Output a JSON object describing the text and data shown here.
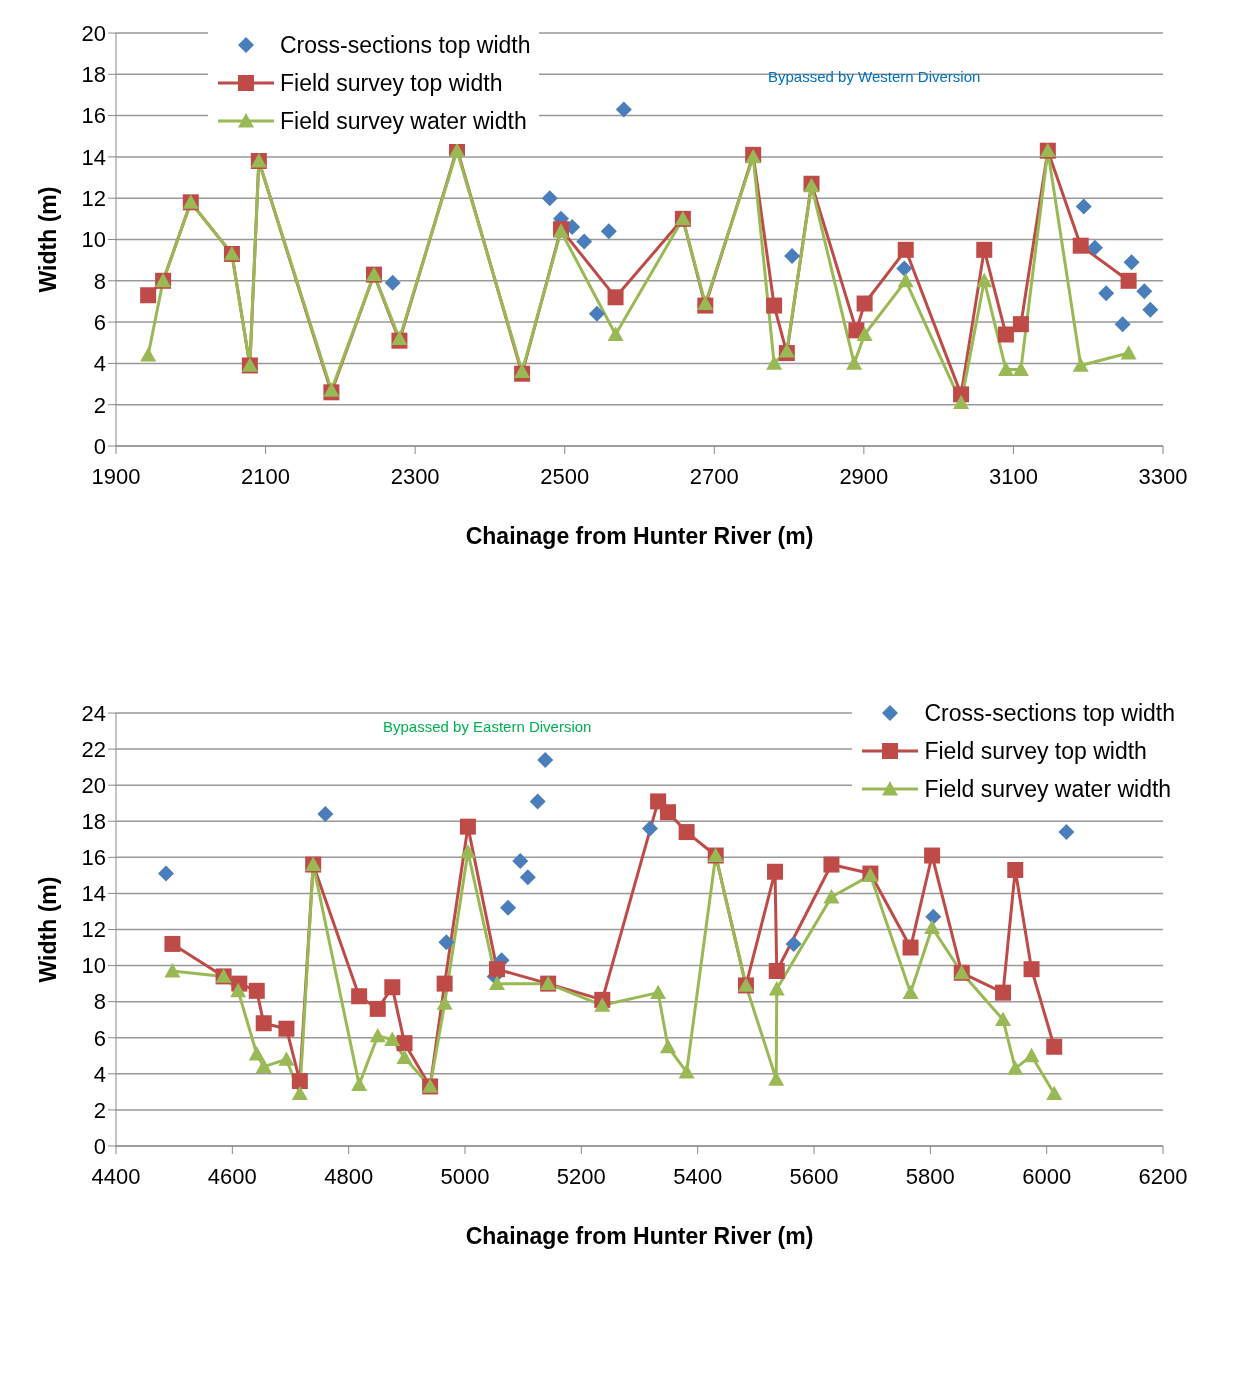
{
  "chart_data": [
    {
      "type": "line",
      "xlabel": "Chainage from Hunter River (m)",
      "ylabel": "Width (m)",
      "xlim": [
        1900,
        3300
      ],
      "xticks": [
        1900,
        2100,
        2300,
        2500,
        2700,
        2900,
        3100,
        3300
      ],
      "ylim": [
        0,
        20
      ],
      "yticks": [
        0,
        2,
        4,
        6,
        8,
        10,
        12,
        14,
        16,
        18,
        20
      ],
      "grid": "y",
      "legend": "top left",
      "annotations": [
        "Bypassed by Western Diversion"
      ],
      "series": [
        {
          "name": "Cross-sections top width",
          "type": "scatter",
          "marker": "diamond",
          "color": "#4a7ebb",
          "x": [
            2270,
            2480,
            2495,
            2510,
            2526,
            2543,
            2559,
            2579,
            2804,
            2954,
            3194,
            3209,
            3224,
            3246,
            3258,
            3275,
            3283
          ],
          "values": [
            7.9,
            12.0,
            11.0,
            10.6,
            9.9,
            6.4,
            10.4,
            16.3,
            9.2,
            8.6,
            11.6,
            9.6,
            7.4,
            5.9,
            8.9,
            7.5,
            6.6
          ]
        },
        {
          "name": "Field survey top width",
          "type": "line",
          "marker": "square",
          "color": "#be4b48",
          "x": [
            1943,
            1963,
            2000,
            2055,
            2079,
            2091,
            2188,
            2245,
            2279,
            2356,
            2443,
            2495,
            2568,
            2658,
            2688,
            2752,
            2780,
            2797,
            2830,
            2890,
            2901,
            2956,
            3030,
            3061,
            3090,
            3110,
            3146,
            3190,
            3254
          ],
          "values": [
            7.3,
            8.0,
            11.8,
            9.3,
            3.9,
            13.8,
            2.6,
            8.3,
            5.1,
            14.4,
            3.5,
            10.5,
            7.2,
            11.0,
            6.8,
            14.1,
            6.8,
            4.5,
            12.7,
            5.6,
            6.9,
            9.5,
            2.5,
            9.5,
            5.4,
            5.9,
            14.3,
            9.7,
            8.0
          ]
        },
        {
          "name": "Field survey water width",
          "type": "line",
          "marker": "triangle",
          "color": "#98b954",
          "x": [
            1943,
            1963,
            2000,
            2055,
            2079,
            2091,
            2188,
            2245,
            2279,
            2356,
            2443,
            2495,
            2568,
            2658,
            2688,
            2752,
            2780,
            2797,
            2830,
            2887,
            2901,
            2956,
            3030,
            3061,
            3090,
            3110,
            3146,
            3190,
            3254
          ],
          "values": [
            4.4,
            8.0,
            11.8,
            9.3,
            3.9,
            13.8,
            2.7,
            8.3,
            5.2,
            14.3,
            3.6,
            10.4,
            5.4,
            11.0,
            6.9,
            14.0,
            4.0,
            4.6,
            12.6,
            4.0,
            5.4,
            8.0,
            2.1,
            8.0,
            3.7,
            3.7,
            14.3,
            3.9,
            4.5
          ]
        }
      ]
    },
    {
      "type": "line",
      "xlabel": "Chainage from Hunter River (m)",
      "ylabel": "Width (m)",
      "xlim": [
        4400,
        6200
      ],
      "xticks": [
        4400,
        4600,
        4800,
        5000,
        5200,
        5400,
        5600,
        5800,
        6000,
        6200
      ],
      "ylim": [
        0,
        24
      ],
      "yticks": [
        0,
        2,
        4,
        6,
        8,
        10,
        12,
        14,
        16,
        18,
        20,
        22,
        24
      ],
      "grid": "y",
      "legend": "top right",
      "annotations": [
        "Bypassed by Eastern Diversion"
      ],
      "series": [
        {
          "name": "Cross-sections top width",
          "type": "scatter",
          "marker": "diamond",
          "color": "#4a7ebb",
          "x": [
            4486,
            4760,
            4968,
            5051,
            5063,
            5074,
            5095,
            5108,
            5125,
            5138,
            5318,
            5565,
            5805,
            6034
          ],
          "values": [
            15.1,
            18.4,
            11.3,
            9.4,
            10.3,
            13.2,
            15.8,
            14.9,
            19.1,
            21.4,
            17.6,
            11.2,
            12.7,
            17.4
          ]
        },
        {
          "name": "Field survey top width",
          "type": "line",
          "marker": "square",
          "color": "#be4b48",
          "x": [
            4497,
            4585,
            4612,
            4642,
            4654,
            4693,
            4716,
            4739,
            4818,
            4850,
            4875,
            4896,
            4940,
            4965,
            5005,
            5055,
            5143,
            5236,
            5332,
            5349,
            5381,
            5431,
            5483,
            5533,
            5536,
            5630,
            5697,
            5766,
            5803,
            5854,
            5925,
            5946,
            5974,
            6013
          ],
          "values": [
            11.2,
            9.4,
            9.0,
            8.6,
            6.8,
            6.5,
            3.6,
            15.6,
            8.3,
            7.6,
            8.8,
            5.7,
            3.3,
            9.0,
            17.7,
            9.8,
            9.0,
            8.1,
            19.1,
            18.5,
            17.4,
            16.1,
            8.9,
            15.2,
            9.7,
            15.6,
            15.1,
            11.0,
            16.1,
            9.6,
            8.5,
            15.3,
            9.8,
            5.5
          ]
        },
        {
          "name": "Field survey water width",
          "type": "line",
          "marker": "triangle",
          "color": "#98b954",
          "x": [
            4497,
            4585,
            4610,
            4642,
            4654,
            4693,
            4716,
            4739,
            4818,
            4850,
            4875,
            4896,
            4940,
            4965,
            5005,
            5055,
            5143,
            5236,
            5332,
            5349,
            5381,
            5431,
            5483,
            5535,
            5536,
            5630,
            5697,
            5766,
            5803,
            5854,
            5925,
            5946,
            5974,
            6013
          ],
          "values": [
            9.7,
            9.4,
            8.6,
            5.1,
            4.4,
            4.8,
            2.9,
            15.6,
            3.4,
            6.1,
            5.9,
            4.9,
            3.3,
            7.9,
            16.3,
            9.0,
            9.0,
            7.8,
            8.5,
            5.5,
            4.1,
            16.1,
            8.9,
            3.7,
            8.7,
            13.8,
            15.0,
            8.5,
            12.1,
            9.6,
            7.0,
            4.3,
            5.0,
            2.9
          ]
        }
      ]
    }
  ]
}
